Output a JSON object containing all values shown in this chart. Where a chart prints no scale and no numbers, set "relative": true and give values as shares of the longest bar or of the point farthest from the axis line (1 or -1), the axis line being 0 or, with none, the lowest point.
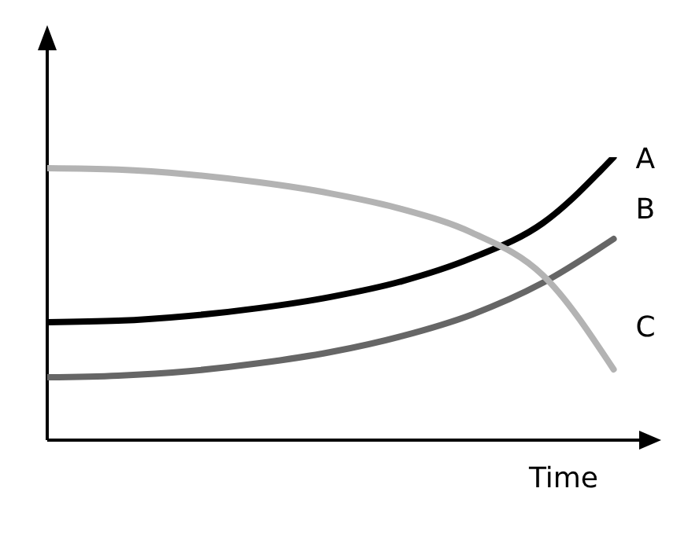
{
  "chart_data": {
    "type": "line",
    "relative": true,
    "xlabel": "Time",
    "categories": [
      null,
      null,
      null,
      null,
      null,
      null,
      null,
      null,
      null
    ],
    "series": [
      {
        "name": "A",
        "color": "#000000",
        "values": [
          0.417,
          0.422,
          0.439,
          0.467,
          0.506,
          0.561,
          0.644,
          0.767,
          1.0
        ]
      },
      {
        "name": "B",
        "color": "#666666",
        "values": [
          0.222,
          0.228,
          0.244,
          0.272,
          0.311,
          0.367,
          0.444,
          0.556,
          0.711
        ]
      },
      {
        "name": "C",
        "color": "#b3b3b3",
        "values": [
          0.961,
          0.956,
          0.939,
          0.911,
          0.872,
          0.817,
          0.733,
          0.583,
          0.25
        ]
      }
    ],
    "grid": false,
    "legend": false,
    "marker": "none",
    "line_style": "solid"
  }
}
